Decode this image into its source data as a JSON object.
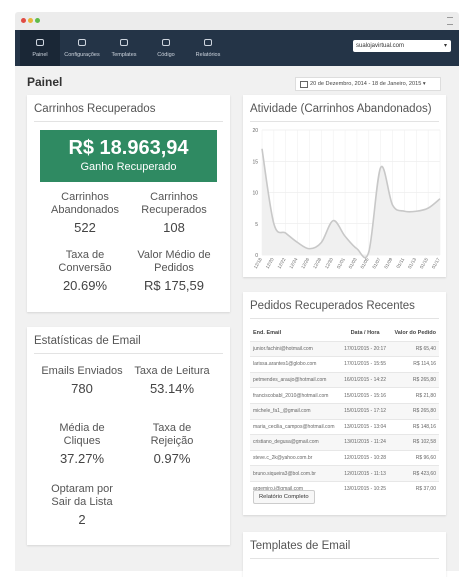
{
  "nav": {
    "items": [
      "Painel",
      "Configurações",
      "Templates",
      "Código",
      "Relatórios"
    ],
    "store": "sualojavirtual.com"
  },
  "page": {
    "title": "Painel",
    "date_range": "20 de Dezembro, 2014 - 18 de Janeiro, 2015"
  },
  "recovered": {
    "title": "Carrinhos Recuperados",
    "amount": "R$ 18.963,94",
    "amount_label": "Ganho Recuperado",
    "stats": [
      {
        "label": "Carrinhos Abandonados",
        "value": "522"
      },
      {
        "label": "Carrinhos Recuperados",
        "value": "108"
      },
      {
        "label": "Taxa de Conversão",
        "value": "20.69%"
      },
      {
        "label": "Valor Médio de Pedidos",
        "value": "R$ 175,59"
      }
    ]
  },
  "email_stats": {
    "title": "Estatísticas de Email",
    "stats": [
      {
        "label": "Emails Enviados",
        "value": "780"
      },
      {
        "label": "Taxa de Leitura",
        "value": "53.14%"
      },
      {
        "label": "Média de Cliques",
        "value": "37.27%"
      },
      {
        "label": "Taxa de Rejeição",
        "value": "0.97%"
      },
      {
        "label": "Optaram por Sair da Lista",
        "value": "2"
      }
    ]
  },
  "activity": {
    "title": "Atividade (Carrinhos Abandonados)",
    "x": [
      "12/18",
      "12/20",
      "12/22",
      "12/24",
      "12/26",
      "12/28",
      "12/30",
      "01/01",
      "01/03",
      "01/05",
      "01/07",
      "01/09",
      "01/11",
      "01/13",
      "01/15",
      "01/17"
    ],
    "values": [
      17,
      5,
      3.5,
      2,
      1,
      2,
      5.5,
      3,
      1,
      0.5,
      14,
      8,
      7,
      7,
      7.5,
      9
    ],
    "ylim": [
      0,
      20
    ],
    "yticks": [
      0,
      5,
      10,
      15,
      20
    ],
    "color": "#c8c8c8"
  },
  "orders": {
    "title": "Pedidos Recuperados Recentes",
    "columns": [
      "End. Email",
      "Data / Hora",
      "Valor do Pedido"
    ],
    "rows": [
      [
        "junior.fachini@hotmail.com",
        "17/01/2015 - 20:17",
        "R$ 65,40"
      ],
      [
        "larissa.arantes1@globo.com",
        "17/01/2015 - 15:55",
        "R$ 114,16"
      ],
      [
        "petmendes_araujo@hotmail.com",
        "16/01/2015 - 14:22",
        "R$ 265,80"
      ],
      [
        "franciscobabl_2010@hotmail.com",
        "15/01/2015 - 15:16",
        "R$ 21,80"
      ],
      [
        "michele_fa1_@gmail.com",
        "15/01/2015 - 17:12",
        "R$ 265,80"
      ],
      [
        "maria_cecilia_campos@hotmail.com",
        "13/01/2015 - 13:04",
        "R$ 148,16"
      ],
      [
        "cristiano_degusa@gmail.com",
        "13/01/2015 - 11:24",
        "R$ 102,58"
      ],
      [
        "steve.c_2k@yahoo.com.br",
        "12/01/2015 - 10:28",
        "R$ 96,60"
      ],
      [
        "bruno.siqueira3@bol.com.br",
        "12/01/2015 - 11:13",
        "R$ 423,60"
      ],
      [
        "argemiro.j@gmail.com",
        "13/01/2015 - 10:25",
        "R$ 37,00"
      ]
    ],
    "button": "Relatório Completo"
  },
  "templates": {
    "title": "Templates de Email"
  }
}
